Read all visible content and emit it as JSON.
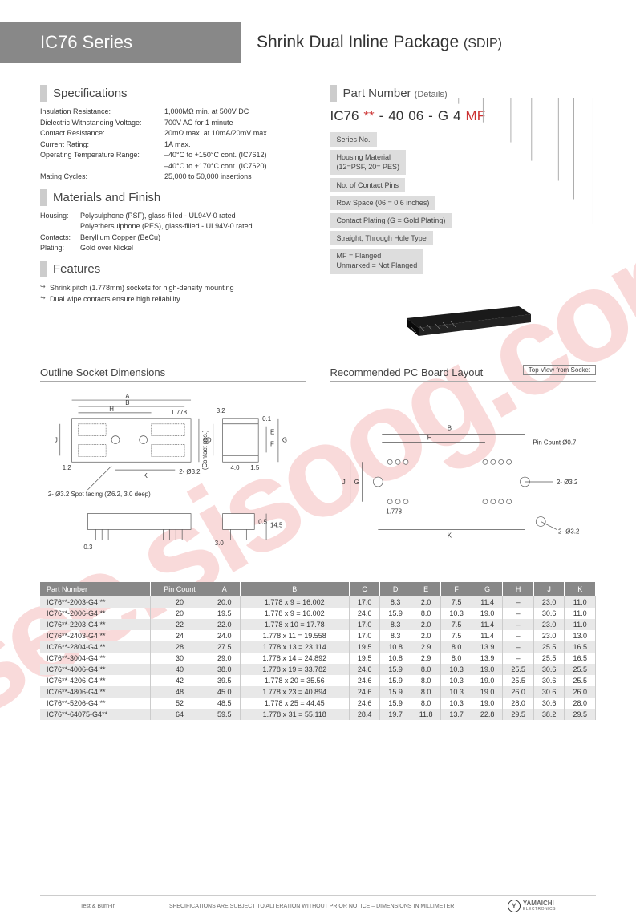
{
  "header": {
    "series": "IC76 Series",
    "title": "Shrink Dual Inline Package",
    "subtitle": "(SDIP)"
  },
  "specifications": {
    "title": "Specifications",
    "rows": [
      {
        "label": "Insulation Resistance:",
        "value": "1,000MΩ min. at 500V DC"
      },
      {
        "label": "Dielectric Withstanding Voltage:",
        "value": "700V AC for 1 minute"
      },
      {
        "label": "Contact Resistance:",
        "value": "20mΩ max. at 10mA/20mV max."
      },
      {
        "label": "Current Rating:",
        "value": "1A max."
      },
      {
        "label": "Operating Temperature Range:",
        "value": "–40°C to +150°C cont. (IC7612)"
      },
      {
        "label": "",
        "value": "–40°C to +170°C cont. (IC7620)"
      },
      {
        "label": "Mating Cycles:",
        "value": "25,000 to 50,000 insertions"
      }
    ]
  },
  "materials": {
    "title": "Materials and Finish",
    "rows": [
      {
        "label": "Housing:",
        "value": "Polysulphone (PSF), glass-filled - UL94V-0 rated"
      },
      {
        "label": "",
        "value": "Polyethersulphone (PES), glass-filled - UL94V-0 rated"
      },
      {
        "label": "Contacts:",
        "value": "Beryllium Copper (BeCu)"
      },
      {
        "label": "Plating:",
        "value": "Gold over Nickel"
      }
    ],
    "label_width": "50px"
  },
  "features": {
    "title": "Features",
    "items": [
      "Shrink pitch (1.778mm) sockets for high-density mounting",
      "Dual wipe contacts ensure high reliability"
    ]
  },
  "partnumber": {
    "title": "Part Number",
    "subtitle": "(Details)",
    "segments": [
      "IC76",
      "**",
      "-",
      "40",
      "06",
      "-",
      "G",
      "4",
      "MF"
    ],
    "red_indices": [
      1,
      8
    ],
    "labels": [
      "Series No.",
      "Housing Material\n(12=PSF, 20= PES)",
      "No. of Contact Pins",
      "Row Space (06 = 0.6 inches)",
      "Contact Plating (G = Gold Plating)",
      "Straight, Through Hole Type",
      "MF = Flanged\nUnmarked = Not Flanged"
    ]
  },
  "drawings": {
    "outline_title": "Outline Socket Dimensions",
    "pcb_title": "Recommended PC Board Layout",
    "topview": "Top View from Socket",
    "outline_labels": {
      "A": "A",
      "B": "B",
      "H": "H",
      "C": "C",
      "D": "D",
      "E": "E",
      "F": "F",
      "G": "G",
      "J": "J",
      "K": "K",
      "pitch": "1.778",
      "r1": "1.2",
      "r2": "2- Ø3.2",
      "spot": "2- Ø3.2 Spot facing (Ø6.2, 3.0 deep)",
      "contact": "(Contact pos.)",
      "d1": "3.2",
      "d2": "0.1",
      "d3": "1.5",
      "d4": "4.0",
      "d5": "0.5",
      "d6": "14.5",
      "d7": "3.0",
      "d8": "0.3"
    },
    "pcb_labels": {
      "B": "B",
      "H": "H",
      "G": "G",
      "J": "J",
      "K": "K",
      "pitch": "1.778",
      "pin": "Pin Count Ø0.7",
      "r1": "2- Ø3.2",
      "r2": "2- Ø3.2"
    }
  },
  "table": {
    "columns": [
      "Part Number",
      "Pin Count",
      "A",
      "B",
      "C",
      "D",
      "E",
      "F",
      "G",
      "H",
      "J",
      "K"
    ],
    "rows": [
      [
        "IC76**-2003-G4 **",
        "20",
        "20.0",
        "1.778 x   9 = 16.002",
        "17.0",
        "8.3",
        "2.0",
        "7.5",
        "11.4",
        "–",
        "23.0",
        "11.0"
      ],
      [
        "IC76**-2006-G4 **",
        "20",
        "19.5",
        "1.778 x   9 = 16.002",
        "24.6",
        "15.9",
        "8.0",
        "10.3",
        "19.0",
        "–",
        "30.6",
        "11.0"
      ],
      [
        "IC76**-2203-G4 **",
        "22",
        "22.0",
        "1.778 x 10 = 17.78",
        "17.0",
        "8.3",
        "2.0",
        "7.5",
        "11.4",
        "–",
        "23.0",
        "11.0"
      ],
      [
        "IC76**-2403-G4 **",
        "24",
        "24.0",
        "1.778 x 11 = 19.558",
        "17.0",
        "8.3",
        "2.0",
        "7.5",
        "11.4",
        "–",
        "23.0",
        "13.0"
      ],
      [
        "IC76**-2804-G4 **",
        "28",
        "27.5",
        "1.778 x 13 = 23.114",
        "19.5",
        "10.8",
        "2.9",
        "8.0",
        "13.9",
        "–",
        "25.5",
        "16.5"
      ],
      [
        "IC76**-3004-G4 **",
        "30",
        "29.0",
        "1.778 x 14 = 24.892",
        "19.5",
        "10.8",
        "2.9",
        "8.0",
        "13.9",
        "–",
        "25.5",
        "16.5"
      ],
      [
        "IC76**-4006-G4 **",
        "40",
        "38.0",
        "1.778 x 19 = 33.782",
        "24.6",
        "15.9",
        "8.0",
        "10.3",
        "19.0",
        "25.5",
        "30.6",
        "25.5"
      ],
      [
        "IC76**-4206-G4 **",
        "42",
        "39.5",
        "1.778 x 20 = 35.56",
        "24.6",
        "15.9",
        "8.0",
        "10.3",
        "19.0",
        "25.5",
        "30.6",
        "25.5"
      ],
      [
        "IC76**-4806-G4 **",
        "48",
        "45.0",
        "1.778 x 23 = 40.894",
        "24.6",
        "15.9",
        "8.0",
        "10.3",
        "19.0",
        "26.0",
        "30.6",
        "26.0"
      ],
      [
        "IC76**-5206-G4 **",
        "52",
        "48.5",
        "1.778 x 25 = 44.45",
        "24.6",
        "15.9",
        "8.0",
        "10.3",
        "19.0",
        "28.0",
        "30.6",
        "28.0"
      ],
      [
        "IC76**-64075-G4**",
        "64",
        "59.5",
        "1.778 x 31 = 55.118",
        "28.4",
        "19.7",
        "11.8",
        "13.7",
        "22.8",
        "29.5",
        "38.2",
        "29.5"
      ]
    ],
    "alt_rows": [
      0,
      2,
      4,
      6,
      8,
      10
    ]
  },
  "footer": {
    "left": "Test & Burn-In",
    "center": "SPECIFICATIONS ARE SUBJECT TO ALTERATION WITHOUT PRIOR NOTICE  –  DIMENSIONS IN MILLIMETER",
    "logo_name": "YAMAICHI",
    "logo_sub": "ELECTRONICS"
  },
  "watermark": "isee.sisoog.com",
  "colors": {
    "header_bg": "#888888",
    "alt_row": "#e8e8e8",
    "accent": "#cc3333",
    "text": "#333333"
  }
}
